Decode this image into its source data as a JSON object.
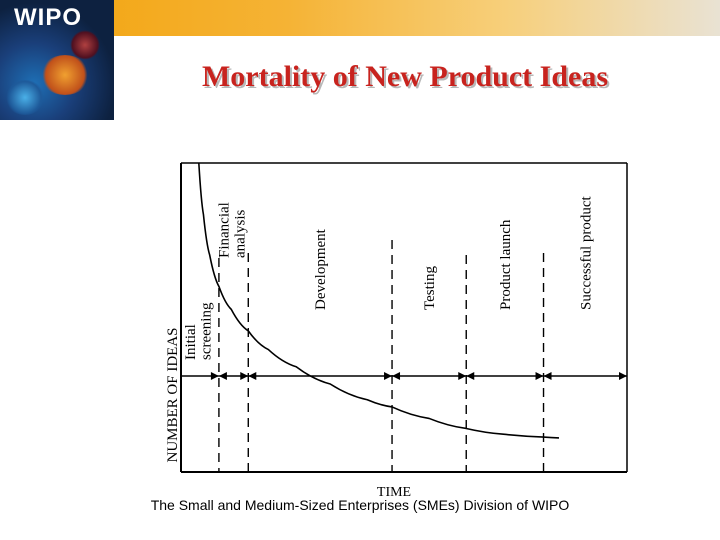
{
  "header": {
    "logo_text": "WIPO"
  },
  "title": "Mortality of New Product Ideas",
  "footer": "The Small and Medium-Sized Enterprises (SMEs) Division of WIPO",
  "colors": {
    "title": "#c8231e",
    "header_band": "#f2a20a",
    "logo_bg": "#0d2140"
  },
  "chart_data": {
    "type": "line",
    "xlabel": "TIME",
    "ylabel": "NUMBER OF IDEAS",
    "stages": [
      {
        "label_lines": [
          "Initial",
          "screening"
        ],
        "boundary": 1.0
      },
      {
        "label_lines": [
          "Financial",
          "analysis"
        ],
        "boundary": 1.95
      },
      {
        "label_lines": [
          "Development"
        ],
        "boundary": 6.6
      },
      {
        "label_lines": [
          "Testing"
        ],
        "boundary": 9.0
      },
      {
        "label_lines": [
          "Product launch"
        ],
        "boundary": 11.5
      },
      {
        "label_lines": [
          "Successful product"
        ],
        "boundary": 14.2
      }
    ],
    "curve": {
      "x": [
        0.35,
        0.5,
        0.7,
        1.0,
        1.4,
        1.95,
        2.6,
        3.5,
        4.6,
        5.8,
        6.6,
        7.8,
        9.0,
        10.2,
        11.5,
        12.0
      ],
      "y": [
        100,
        82,
        68,
        57,
        49,
        41.5,
        35,
        29,
        23,
        17.5,
        15,
        11,
        7.5,
        5.5,
        4.5,
        4.2
      ]
    },
    "xlim": [
      0,
      14.2
    ],
    "ylim": [
      0,
      100
    ],
    "grid": false
  }
}
